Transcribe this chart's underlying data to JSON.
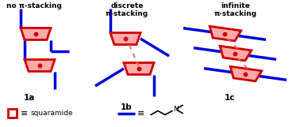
{
  "bg_color": "#ffffff",
  "red_color": "#cc0000",
  "blue_color": "#0000dd",
  "dashed_color": "#ff6666",
  "text_color": "#000000",
  "title_1a": "no π-stacking",
  "title_1b": "discrete\nπ-stacking",
  "title_1c": "infinite\nπ-stacking",
  "label_1a": "1a",
  "label_1b": "1b",
  "label_1c": "1c"
}
